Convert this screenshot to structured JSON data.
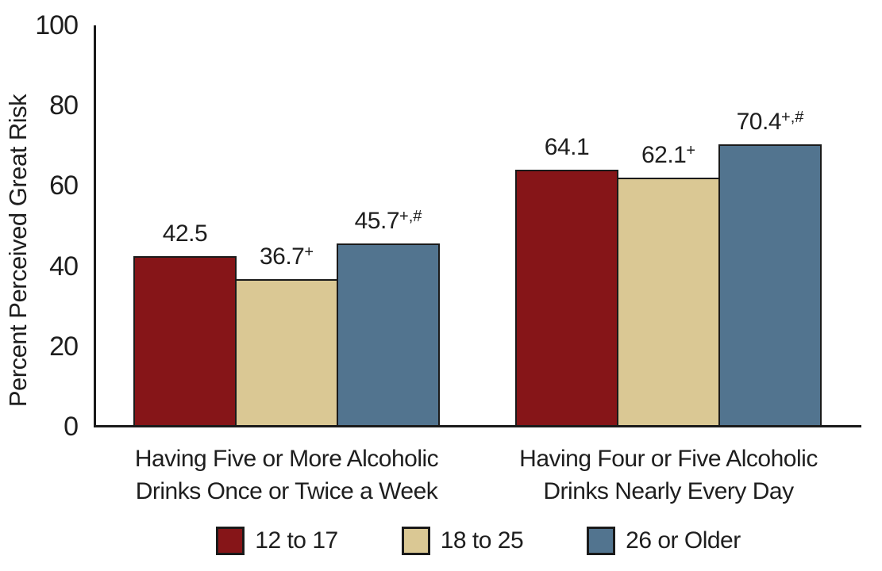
{
  "chart_data": {
    "type": "bar",
    "title": "",
    "ylabel": "Percent Perceived Great Risk",
    "xlabel": "",
    "ylim": [
      0,
      100
    ],
    "yticks": [
      0,
      20,
      40,
      60,
      80,
      100
    ],
    "grid": false,
    "legend_position": "bottom-center",
    "background_color": "#FFFFFF",
    "axis_color": "#1A1A1A",
    "text_color": "#1E1E1E",
    "categories": [
      {
        "label": "Having Five or More Alcoholic Drinks Once or Twice a Week",
        "lines": [
          "Having Five or More Alcoholic",
          "Drinks Once or Twice a Week"
        ]
      },
      {
        "label": "Having Four or Five Alcoholic Drinks Nearly Every Day",
        "lines": [
          "Having Four or Five Alcoholic",
          "Drinks Nearly Every Day"
        ]
      }
    ],
    "series": [
      {
        "name": "12 to 17",
        "color": "#861518",
        "values": [
          42.5,
          64.1
        ],
        "value_labels": [
          "42.5",
          "64.1"
        ],
        "superscripts": [
          "",
          ""
        ]
      },
      {
        "name": "18 to 25",
        "color": "#DAC894",
        "values": [
          36.7,
          62.1
        ],
        "value_labels": [
          "36.7",
          "62.1"
        ],
        "superscripts": [
          "+",
          "+"
        ]
      },
      {
        "name": "26 or Older",
        "color": "#52748F",
        "values": [
          45.7,
          70.4
        ],
        "value_labels": [
          "45.7",
          "70.4"
        ],
        "superscripts": [
          "+,#",
          "+,#"
        ]
      }
    ]
  }
}
